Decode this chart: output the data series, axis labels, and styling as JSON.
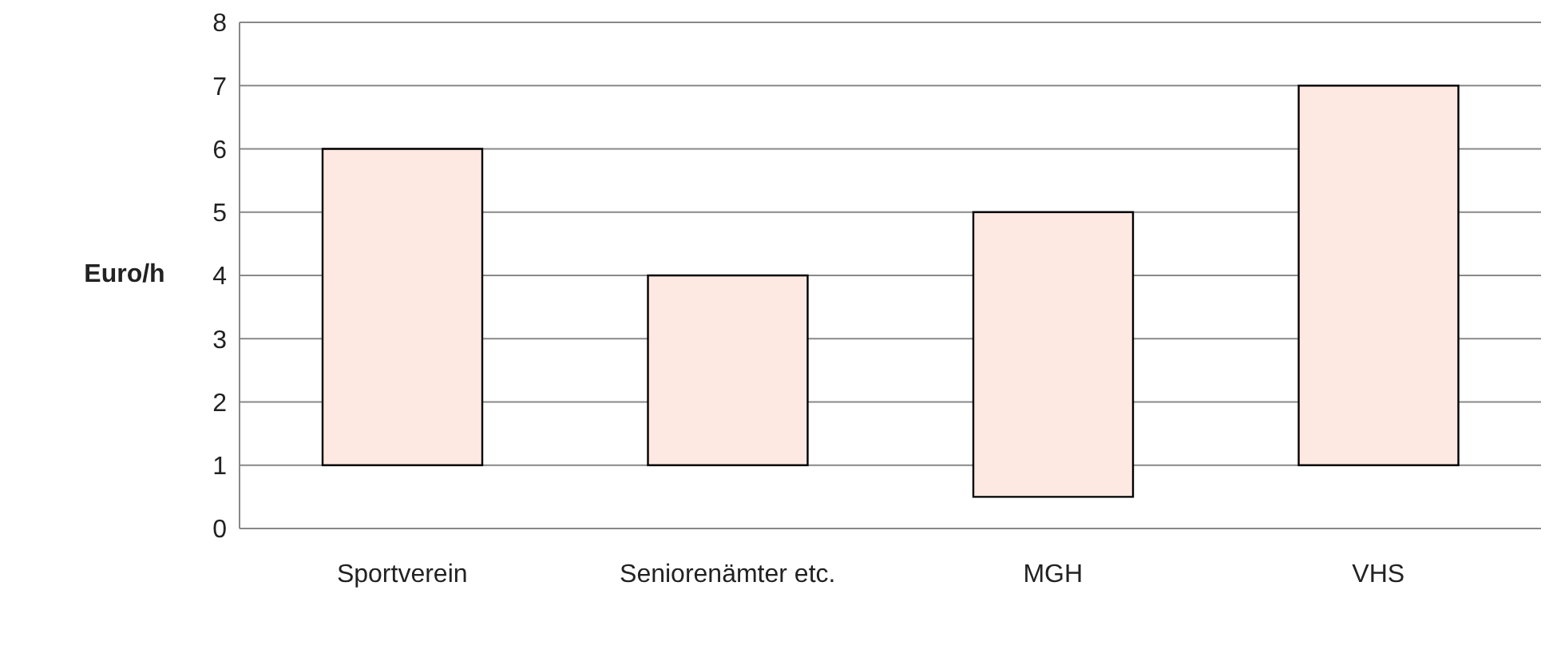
{
  "chart_data": {
    "type": "bar",
    "ylabel": "Euro/h",
    "categories": [
      "Sportverein",
      "Seniorenämter etc.",
      "MGH",
      "VHS"
    ],
    "base": [
      1,
      1,
      0.5,
      1
    ],
    "values": [
      5,
      3,
      4.5,
      6
    ],
    "color": "#fde9e1",
    "ylim": [
      0,
      8
    ],
    "yticks": [
      0,
      1,
      2,
      3,
      4,
      5,
      6,
      7,
      8
    ],
    "grid": "y",
    "legend": false
  }
}
